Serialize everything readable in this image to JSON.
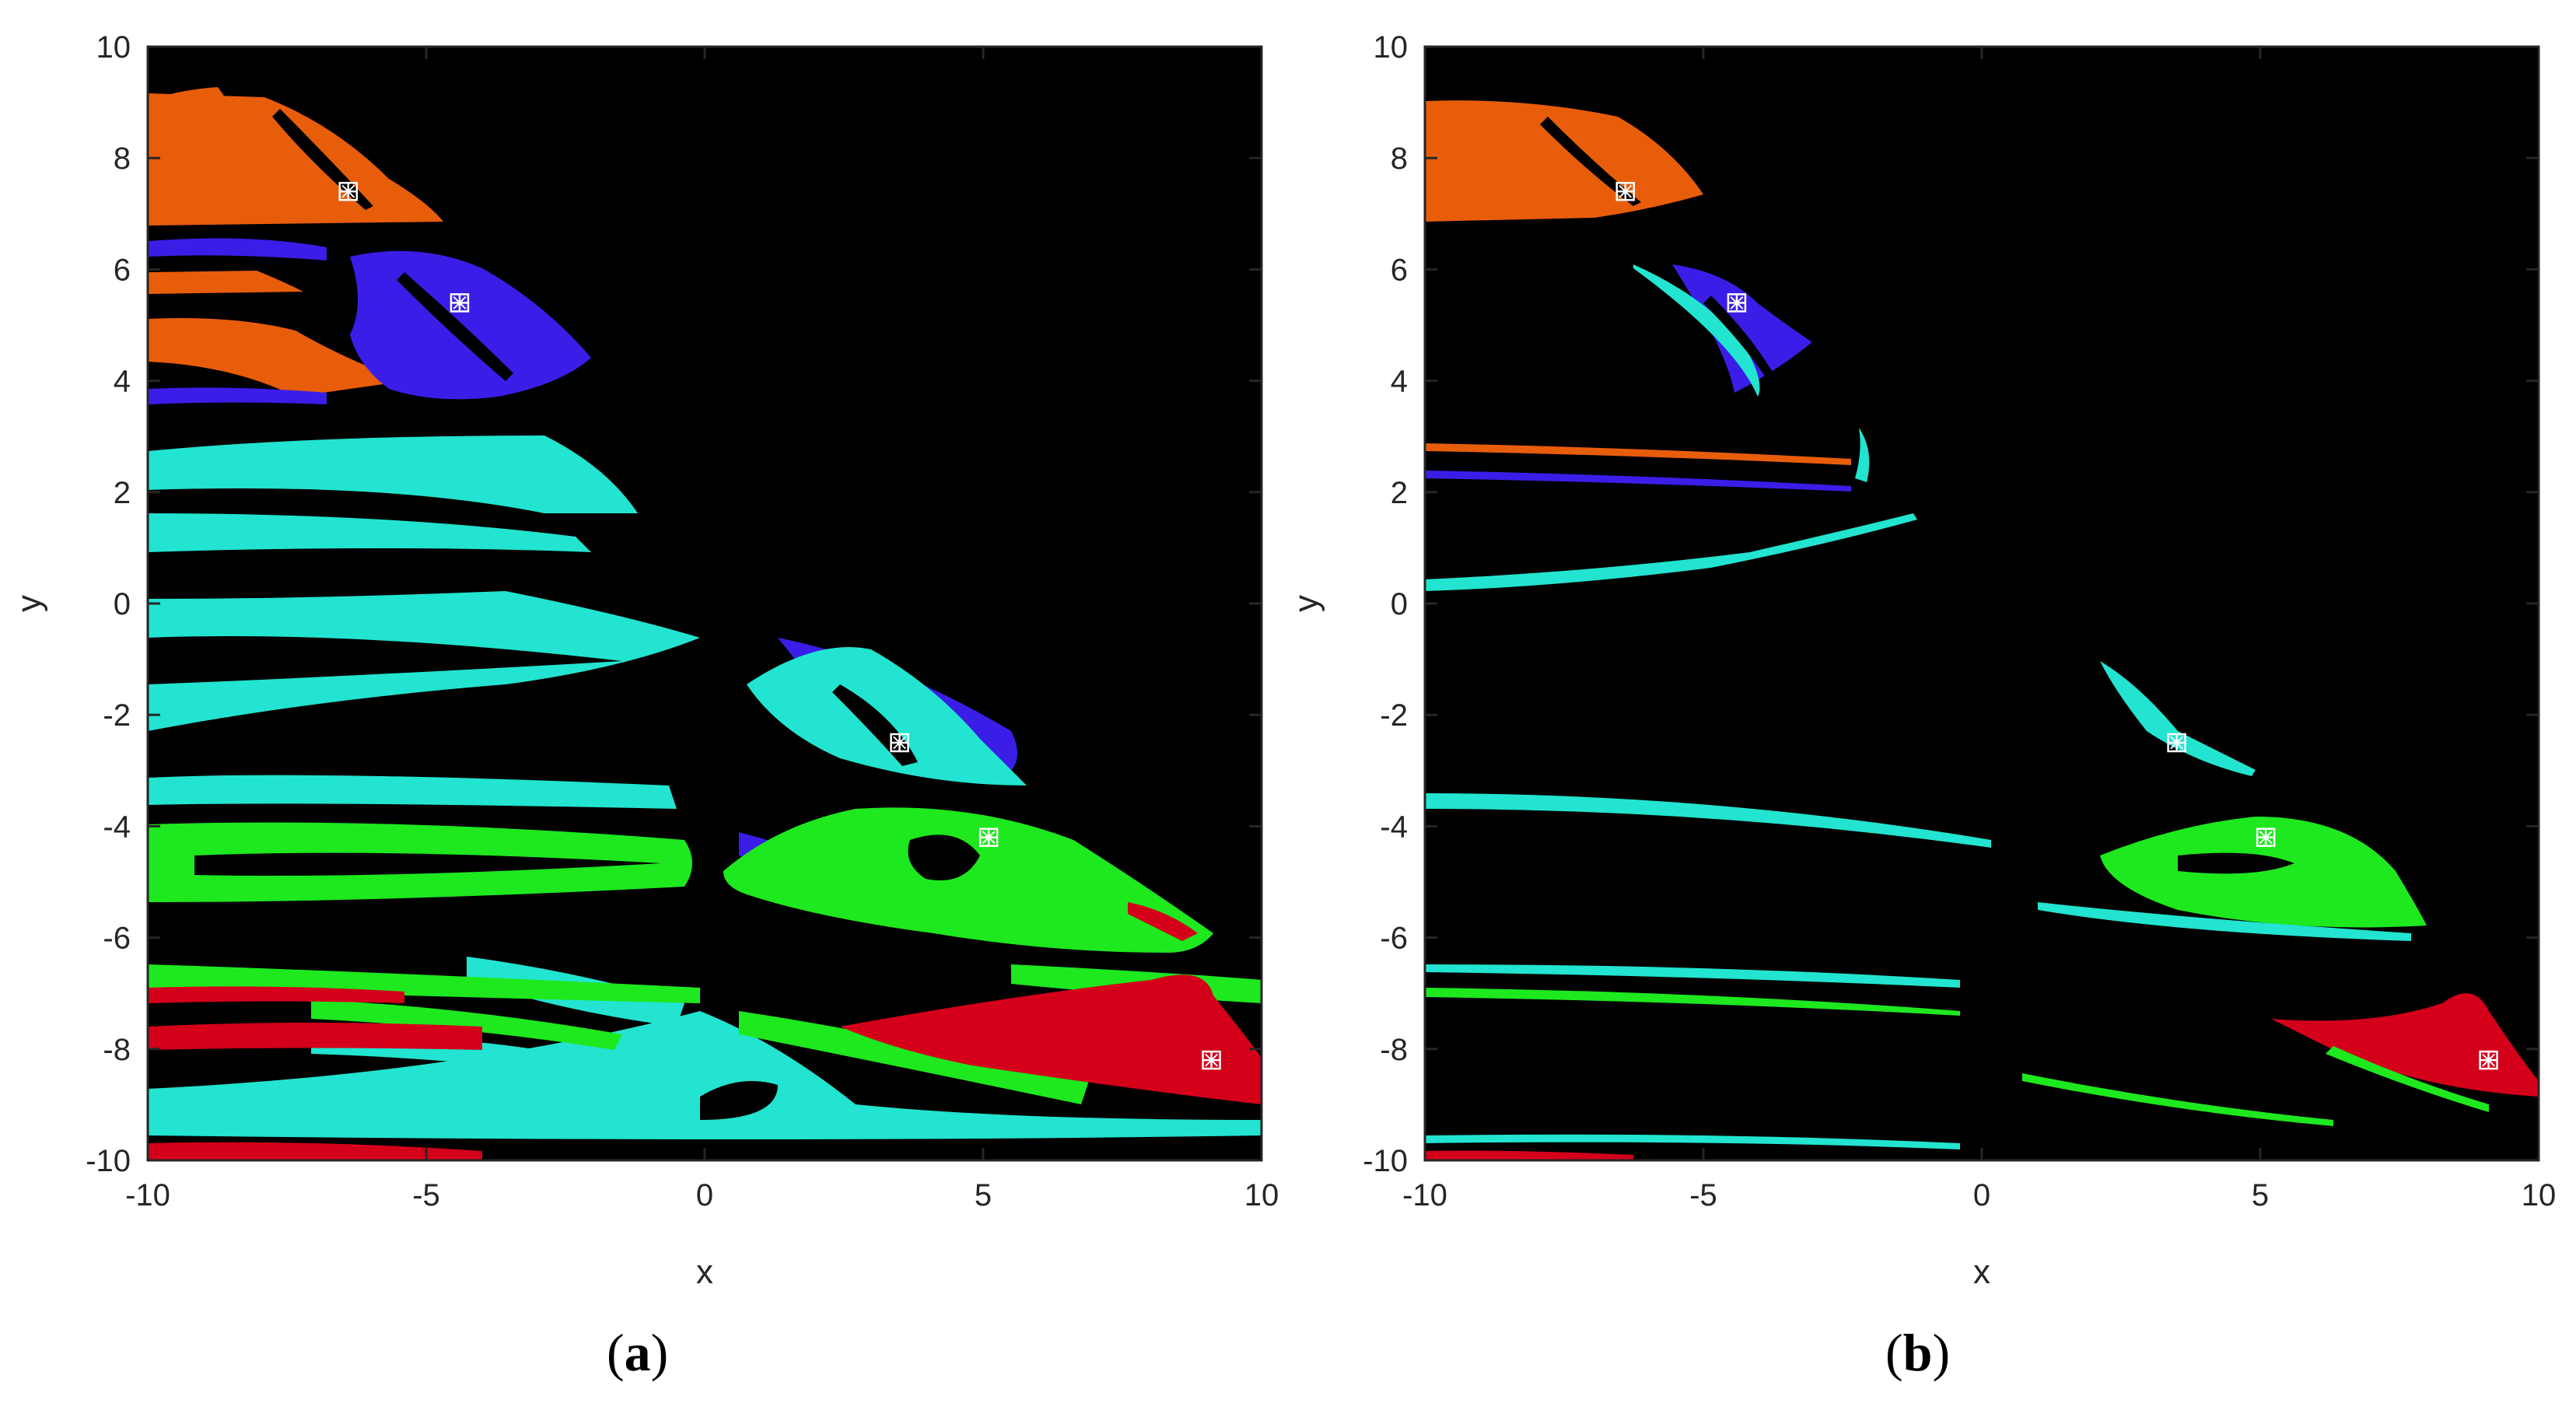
{
  "chart_data": [
    {
      "type": "heatmap",
      "panel_label": "a",
      "xlabel": "x",
      "ylabel": "y",
      "xlim": [
        -10,
        10
      ],
      "ylim": [
        -10,
        10
      ],
      "xticks": [
        "-10",
        "-5",
        "0",
        "5",
        "10"
      ],
      "yticks": [
        "10",
        "8",
        "6",
        "4",
        "2",
        "0",
        "-2",
        "-4",
        "-6",
        "-8",
        "-10"
      ],
      "background_color": "#000000",
      "basin_colors": {
        "orange": "#e85d0a",
        "blue": "#3a1ee8",
        "cyan": "#22e4d0",
        "green": "#1ee81e",
        "red": "#d4001a"
      },
      "attractors": [
        {
          "x": -6.4,
          "y": 7.4,
          "color": "orange"
        },
        {
          "x": -4.4,
          "y": 5.4,
          "color": "blue"
        },
        {
          "x": 3.5,
          "y": -2.5,
          "color": "cyan"
        },
        {
          "x": 5.1,
          "y": -4.2,
          "color": "green"
        },
        {
          "x": 9.1,
          "y": -8.2,
          "color": "red"
        }
      ]
    },
    {
      "type": "heatmap",
      "panel_label": "b",
      "xlabel": "x",
      "ylabel": "y",
      "xlim": [
        -10,
        10
      ],
      "ylim": [
        -10,
        10
      ],
      "xticks": [
        "-10",
        "-5",
        "0",
        "5",
        "10"
      ],
      "yticks": [
        "10",
        "8",
        "6",
        "4",
        "2",
        "0",
        "-2",
        "-4",
        "-6",
        "-8",
        "-10"
      ],
      "background_color": "#000000",
      "basin_colors": {
        "orange": "#e85d0a",
        "blue": "#3a1ee8",
        "cyan": "#22e4d0",
        "green": "#1ee81e",
        "red": "#d4001a"
      },
      "attractors": [
        {
          "x": -6.4,
          "y": 7.4,
          "color": "orange"
        },
        {
          "x": -4.4,
          "y": 5.4,
          "color": "blue"
        },
        {
          "x": 3.5,
          "y": -2.5,
          "color": "cyan"
        },
        {
          "x": 5.1,
          "y": -4.2,
          "color": "green"
        },
        {
          "x": 9.1,
          "y": -8.2,
          "color": "red"
        }
      ]
    }
  ]
}
